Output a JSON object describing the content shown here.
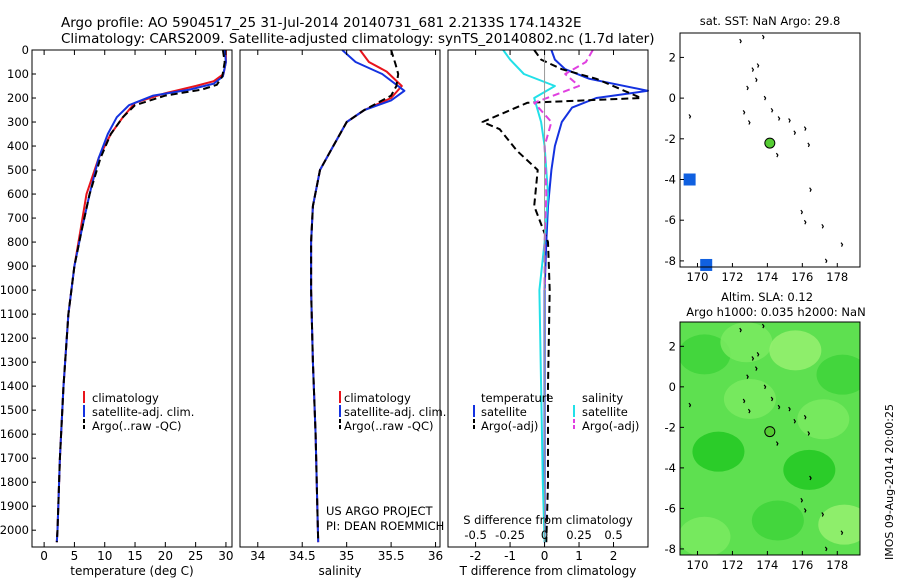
{
  "header": {
    "line1": "Argo profile: AO 5904517_25 31-Jul-2014 20140731_681 2.2133S 174.1432E",
    "line2": "Climatology: CARS2009. Satellite-adjusted climatology: synTS_20140802.nc (1.7d later)"
  },
  "footer": {
    "project": "US ARGO PROJECT",
    "pi": "PI: DEAN ROEMMICH",
    "stamp": "IMOS 09-Aug-2014 20:00:25"
  },
  "colors": {
    "climatology": "#e8141c",
    "satellite": "#1432e0",
    "argo": "#000000",
    "cyan": "#22e0e8",
    "magenta": "#e040e0",
    "land": "#000000",
    "argo_marker": "#55cc33",
    "blue_patch": "#1060e0"
  },
  "chart_data": [
    {
      "type": "line",
      "xlabel": "temperature (deg C)",
      "ylabel": "",
      "xlim": [
        -2,
        31
      ],
      "ylim": [
        2070,
        0
      ],
      "xticks": [
        0,
        5,
        10,
        15,
        20,
        25,
        30
      ],
      "xtick_labels": [
        "0",
        "5",
        "10",
        "15",
        "20",
        "25",
        "30"
      ],
      "yticks": [
        0,
        100,
        200,
        300,
        400,
        500,
        600,
        700,
        800,
        900,
        1000,
        1100,
        1200,
        1300,
        1400,
        1500,
        1600,
        1700,
        1800,
        1900,
        2000
      ],
      "ytick_labels": [
        "0",
        "100",
        "200",
        "300",
        "400",
        "500",
        "600",
        "700",
        "800",
        "900",
        "1000",
        "1100",
        "1200",
        "1300",
        "1400",
        "1500",
        "1600",
        "1700",
        "1800",
        "1900",
        "2000"
      ],
      "legend": [
        "climatology",
        "satellite-adj. clim.",
        "Argo(..raw -QC)"
      ],
      "series": [
        {
          "name": "climatology",
          "style": "solid",
          "color": "#e8141c",
          "x": [
            30,
            30,
            29.6,
            28,
            25,
            20,
            15,
            13,
            11,
            9,
            7,
            6,
            5,
            4,
            3.2,
            2.6,
            2.2,
            2.1
          ],
          "y": [
            0,
            50,
            100,
            130,
            150,
            180,
            220,
            280,
            350,
            450,
            600,
            750,
            900,
            1100,
            1400,
            1700,
            2000,
            2050
          ]
        },
        {
          "name": "satellite-adj. clim.",
          "style": "solid",
          "color": "#1432e0",
          "x": [
            29.8,
            30,
            29.5,
            28,
            24,
            18,
            14,
            12,
            10.5,
            9,
            7.5,
            6.2,
            5,
            4,
            3.2,
            2.6,
            2.2,
            2.1
          ],
          "y": [
            0,
            50,
            110,
            140,
            165,
            190,
            230,
            280,
            350,
            450,
            600,
            750,
            900,
            1100,
            1400,
            1700,
            2000,
            2050
          ]
        },
        {
          "name": "Argo(..raw -QC)",
          "style": "dashed",
          "color": "#000000",
          "x": [
            29.5,
            29.8,
            29.4,
            28.5,
            26,
            20,
            15,
            13,
            11,
            9.3,
            7.5,
            6.2,
            5,
            4,
            3.2,
            2.6,
            2.2,
            2.1
          ],
          "y": [
            0,
            50,
            110,
            145,
            165,
            190,
            230,
            280,
            350,
            450,
            600,
            750,
            900,
            1100,
            1400,
            1700,
            2000,
            2050
          ]
        }
      ]
    },
    {
      "type": "line",
      "xlabel": "salinity",
      "xlim": [
        33.8,
        36.05
      ],
      "ylim": [
        2070,
        0
      ],
      "xticks": [
        34,
        34.5,
        35,
        35.5,
        36
      ],
      "xtick_labels": [
        "34",
        "34.5",
        "35",
        "35.5",
        "36"
      ],
      "legend": [
        "climatology",
        "satellite-adj. clim.",
        "Argo(..raw -QC)"
      ],
      "series": [
        {
          "name": "climatology",
          "style": "solid",
          "color": "#e8141c",
          "x": [
            35.15,
            35.25,
            35.45,
            35.62,
            35.5,
            35.2,
            35.0,
            34.85,
            34.7,
            34.62,
            34.6,
            34.6,
            34.62,
            34.65,
            34.67,
            34.68
          ],
          "y": [
            0,
            50,
            90,
            150,
            200,
            250,
            300,
            400,
            500,
            650,
            800,
            1000,
            1300,
            1600,
            1900,
            2050
          ]
        },
        {
          "name": "satellite-adj. clim.",
          "style": "solid",
          "color": "#1432e0",
          "x": [
            34.95,
            35.1,
            35.4,
            35.65,
            35.5,
            35.2,
            35.0,
            34.85,
            34.7,
            34.62,
            34.6,
            34.6,
            34.62,
            34.65,
            34.67,
            34.68
          ],
          "y": [
            0,
            50,
            100,
            170,
            210,
            250,
            300,
            400,
            500,
            650,
            800,
            1000,
            1300,
            1600,
            1900,
            2050
          ]
        },
        {
          "name": "Argo(..raw -QC)",
          "style": "dashed",
          "color": "#000000",
          "x": [
            35.5,
            35.55,
            35.58,
            35.56,
            35.5,
            35.2,
            35.0,
            34.85,
            34.7,
            34.62,
            34.6,
            34.6,
            34.62,
            34.65,
            34.67,
            34.68
          ],
          "y": [
            0,
            60,
            100,
            150,
            190,
            250,
            300,
            400,
            500,
            650,
            800,
            1000,
            1300,
            1600,
            1900,
            2050
          ]
        }
      ]
    },
    {
      "type": "line",
      "xlabel": "T difference from climatology",
      "xlabel2": "S difference from climatology",
      "xlim": [
        -2.8,
        3.0
      ],
      "ylim": [
        2070,
        0
      ],
      "xticks": [
        -2,
        -1,
        0,
        1,
        2
      ],
      "xtick_labels": [
        "-2",
        "-1",
        "0",
        "1",
        "2"
      ],
      "s_ticks": [
        -2,
        -1,
        0,
        1,
        2
      ],
      "s_tick_labels": [
        "-0.5",
        "-0.25",
        "0",
        "0.25",
        "0.5"
      ],
      "legend_temperature": {
        "title": "temperature",
        "items": [
          "satellite",
          "Argo(-adj)"
        ]
      },
      "legend_salinity": {
        "title": "salinity",
        "items": [
          "satellite",
          "Argo(-adj)"
        ]
      },
      "series": [
        {
          "name": "T satellite",
          "style": "solid",
          "color": "#1432e0",
          "x": [
            0.2,
            0.3,
            0.6,
            1.3,
            3.0,
            1.5,
            0.8,
            0.5,
            0.3,
            0.2,
            0.1,
            0.05,
            0.0,
            0.0,
            0.0,
            0.0
          ],
          "y": [
            0,
            40,
            80,
            120,
            170,
            200,
            240,
            300,
            400,
            500,
            650,
            800,
            1000,
            1400,
            1800,
            2050
          ]
        },
        {
          "name": "T Argo(-adj)",
          "style": "dashed",
          "color": "#000000",
          "x": [
            -0.3,
            -0.1,
            0.5,
            1.5,
            2.8,
            -0.5,
            -1.8,
            -1.3,
            -0.8,
            -0.2,
            -0.3,
            0.1,
            0.15,
            0.1,
            0.1,
            0.05
          ],
          "y": [
            0,
            40,
            80,
            120,
            200,
            220,
            300,
            330,
            420,
            500,
            650,
            800,
            1000,
            1400,
            1800,
            2050
          ]
        },
        {
          "name": "S satellite",
          "style": "solid",
          "color": "#22e0e8",
          "x": [
            -1.2,
            -1.0,
            -0.6,
            0.3,
            -0.3,
            -0.1,
            0.0,
            0.1,
            0.0,
            -0.15,
            -0.1,
            -0.05,
            0.0
          ],
          "y": [
            0,
            40,
            100,
            150,
            200,
            300,
            400,
            600,
            800,
            1000,
            1400,
            1800,
            2050
          ]
        },
        {
          "name": "S Argo(-adj)",
          "style": "dashed",
          "color": "#e040e0",
          "x": [
            1.4,
            1.2,
            0.6,
            1.0,
            -0.3,
            0.2,
            0.0,
            0.05,
            0.0,
            0.0
          ],
          "y": [
            0,
            50,
            100,
            150,
            220,
            300,
            400,
            600,
            800,
            1000
          ]
        }
      ]
    },
    {
      "type": "scatter",
      "title": "sat. SST: NaN Argo: 29.8",
      "xlim": [
        169,
        179.3
      ],
      "ylim": [
        -8.3,
        3.2
      ],
      "xticks": [
        170,
        172,
        174,
        176,
        178
      ],
      "xtick_labels": [
        "170",
        "172",
        "174",
        "176",
        "178"
      ],
      "yticks": [
        2,
        0,
        -2,
        -4,
        -6,
        -8
      ],
      "ytick_labels": [
        "2",
        "0",
        "-2",
        "-4",
        "-6",
        "-8"
      ],
      "argo_position": {
        "lon": 174.14,
        "lat": -2.21
      },
      "land_points": [
        [
          172.5,
          2.8
        ],
        [
          173.8,
          3.0
        ],
        [
          173.2,
          1.4
        ],
        [
          173.5,
          1.6
        ],
        [
          173.4,
          0.9
        ],
        [
          172.9,
          0.5
        ],
        [
          173.9,
          0.0
        ],
        [
          172.7,
          -0.7
        ],
        [
          173.0,
          -1.2
        ],
        [
          174.3,
          -0.6
        ],
        [
          174.7,
          -1.0
        ],
        [
          175.3,
          -1.1
        ],
        [
          175.6,
          -1.7
        ],
        [
          176.2,
          -1.5
        ],
        [
          176.4,
          -2.3
        ],
        [
          174.6,
          -2.8
        ],
        [
          176.5,
          -4.5
        ],
        [
          177.2,
          -6.3
        ],
        [
          176.2,
          -6.1
        ],
        [
          178.3,
          -7.2
        ],
        [
          177.4,
          -8.0
        ],
        [
          176.0,
          -5.6
        ],
        [
          169.6,
          -0.9
        ]
      ],
      "blue_patches": [
        {
          "lon": 169.55,
          "lat": -4.0
        },
        {
          "lon": 170.5,
          "lat": -8.2
        }
      ]
    },
    {
      "type": "heatmap",
      "title": "Altim. SLA: 0.12",
      "subtitle": "Argo h1000: 0.035 h2000: NaN",
      "xlim": [
        169,
        179.3
      ],
      "ylim": [
        -8.3,
        3.2
      ],
      "xticks": [
        170,
        172,
        174,
        176,
        178
      ],
      "xtick_labels": [
        "170",
        "172",
        "174",
        "176",
        "178"
      ],
      "yticks": [
        2,
        0,
        -2,
        -4,
        -6,
        -8
      ],
      "ytick_labels": [
        "2",
        "0",
        "-2",
        "-4",
        "-6",
        "-8"
      ],
      "argo_position": {
        "lon": 174.14,
        "lat": -2.21
      },
      "land_points": [
        [
          172.5,
          2.8
        ],
        [
          173.8,
          3.0
        ],
        [
          173.2,
          1.4
        ],
        [
          173.5,
          1.6
        ],
        [
          173.4,
          0.9
        ],
        [
          172.9,
          0.5
        ],
        [
          173.9,
          0.0
        ],
        [
          172.7,
          -0.7
        ],
        [
          173.0,
          -1.2
        ],
        [
          174.3,
          -0.6
        ],
        [
          174.7,
          -1.0
        ],
        [
          175.3,
          -1.1
        ],
        [
          175.6,
          -1.7
        ],
        [
          176.2,
          -1.5
        ],
        [
          176.4,
          -2.3
        ],
        [
          174.6,
          -2.8
        ],
        [
          176.5,
          -4.5
        ],
        [
          177.2,
          -6.3
        ],
        [
          176.2,
          -6.1
        ],
        [
          178.3,
          -7.2
        ],
        [
          177.4,
          -8.0
        ],
        [
          176.0,
          -5.6
        ],
        [
          169.6,
          -0.9
        ]
      ],
      "field_colors": [
        "#22c822",
        "#3ed43a",
        "#5ee050",
        "#7aea60",
        "#96f070"
      ],
      "field_blobs": [
        {
          "lon": 171.2,
          "lat": -3.2,
          "level": 0
        },
        {
          "lon": 176.4,
          "lat": -4.1,
          "level": 0
        },
        {
          "lon": 170.4,
          "lat": 1.6,
          "level": 1
        },
        {
          "lon": 174.6,
          "lat": -6.6,
          "level": 1
        },
        {
          "lon": 178.3,
          "lat": 0.6,
          "level": 1
        },
        {
          "lon": 172.8,
          "lat": 2.2,
          "level": 3
        },
        {
          "lon": 175.6,
          "lat": 1.8,
          "level": 4
        },
        {
          "lon": 173.0,
          "lat": -0.6,
          "level": 3
        },
        {
          "lon": 177.2,
          "lat": -1.6,
          "level": 3
        },
        {
          "lon": 170.4,
          "lat": -7.4,
          "level": 3
        },
        {
          "lon": 178.4,
          "lat": -6.8,
          "level": 4
        }
      ]
    }
  ]
}
